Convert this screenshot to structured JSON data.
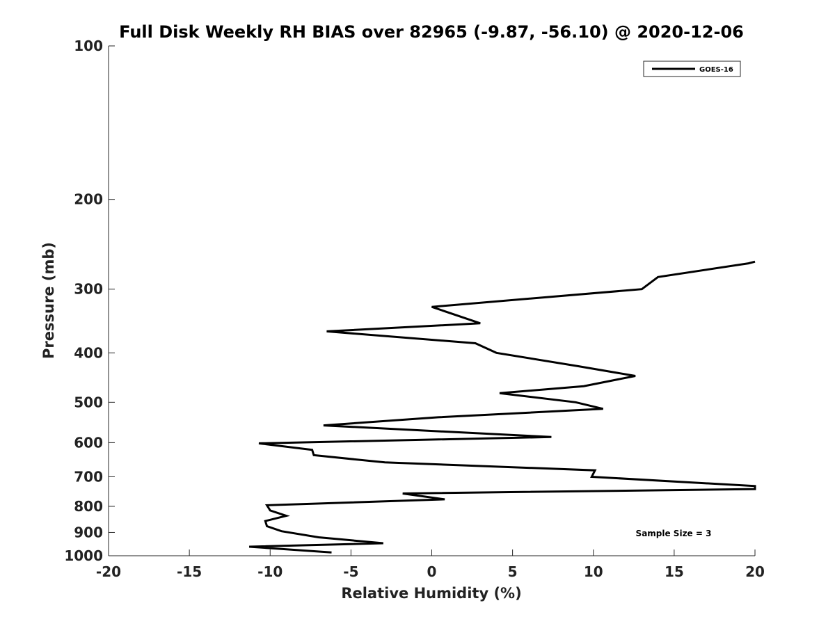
{
  "chart_data": {
    "type": "line",
    "title": "Full Disk Weekly RH BIAS over 82965 (-9.87, -56.10) @ 2020-12-06",
    "xlabel": "Relative Humidity (%)",
    "ylabel": "Pressure (mb)",
    "xlim": [
      -20,
      20
    ],
    "ylim": [
      100,
      1000
    ],
    "yscale": "log",
    "y_inverted": true,
    "grid": false,
    "legend_position": "top-right",
    "x_ticks": [
      -20,
      -15,
      -10,
      -5,
      0,
      5,
      10,
      15,
      20
    ],
    "x_tick_labels": [
      "-20",
      "-15",
      "-10",
      "-5",
      "0",
      "5",
      "10",
      "15",
      "20"
    ],
    "y_ticks": [
      100,
      200,
      300,
      400,
      500,
      600,
      700,
      800,
      900,
      1000
    ],
    "y_tick_labels": [
      "100",
      "200",
      "300",
      "400",
      "500",
      "600",
      "700",
      "800",
      "900",
      "1000"
    ],
    "series": [
      {
        "name": "GOES-16",
        "color": "#000000",
        "points": [
          {
            "rh": 20.0,
            "p": 265
          },
          {
            "rh": 19.6,
            "p": 267
          },
          {
            "rh": 14.0,
            "p": 284
          },
          {
            "rh": 13.0,
            "p": 300
          },
          {
            "rh": 0.0,
            "p": 325
          },
          {
            "rh": 3.0,
            "p": 350
          },
          {
            "rh": -6.5,
            "p": 363
          },
          {
            "rh": 2.7,
            "p": 383
          },
          {
            "rh": 4.0,
            "p": 400
          },
          {
            "rh": 9.1,
            "p": 425
          },
          {
            "rh": 12.6,
            "p": 444
          },
          {
            "rh": 9.4,
            "p": 465
          },
          {
            "rh": 4.2,
            "p": 480
          },
          {
            "rh": 8.9,
            "p": 500
          },
          {
            "rh": 10.6,
            "p": 515
          },
          {
            "rh": 0.4,
            "p": 535
          },
          {
            "rh": -6.7,
            "p": 555
          },
          {
            "rh": 7.4,
            "p": 585
          },
          {
            "rh": -10.7,
            "p": 602
          },
          {
            "rh": -7.4,
            "p": 620
          },
          {
            "rh": -7.3,
            "p": 635
          },
          {
            "rh": -2.9,
            "p": 656
          },
          {
            "rh": 10.1,
            "p": 680
          },
          {
            "rh": 9.9,
            "p": 700
          },
          {
            "rh": 20.0,
            "p": 730
          },
          {
            "rh": 20.0,
            "p": 740
          },
          {
            "rh": -1.8,
            "p": 755
          },
          {
            "rh": 0.8,
            "p": 775
          },
          {
            "rh": -10.2,
            "p": 796
          },
          {
            "rh": -10.0,
            "p": 815
          },
          {
            "rh": -9.0,
            "p": 835
          },
          {
            "rh": -10.3,
            "p": 855
          },
          {
            "rh": -10.2,
            "p": 875
          },
          {
            "rh": -9.3,
            "p": 895
          },
          {
            "rh": -7.0,
            "p": 920
          },
          {
            "rh": -3.0,
            "p": 945
          },
          {
            "rh": -11.3,
            "p": 960
          },
          {
            "rh": -6.2,
            "p": 985
          }
        ]
      }
    ],
    "annotations": [
      {
        "text": "Sample Size = 3",
        "position": "bottom-right"
      }
    ]
  }
}
